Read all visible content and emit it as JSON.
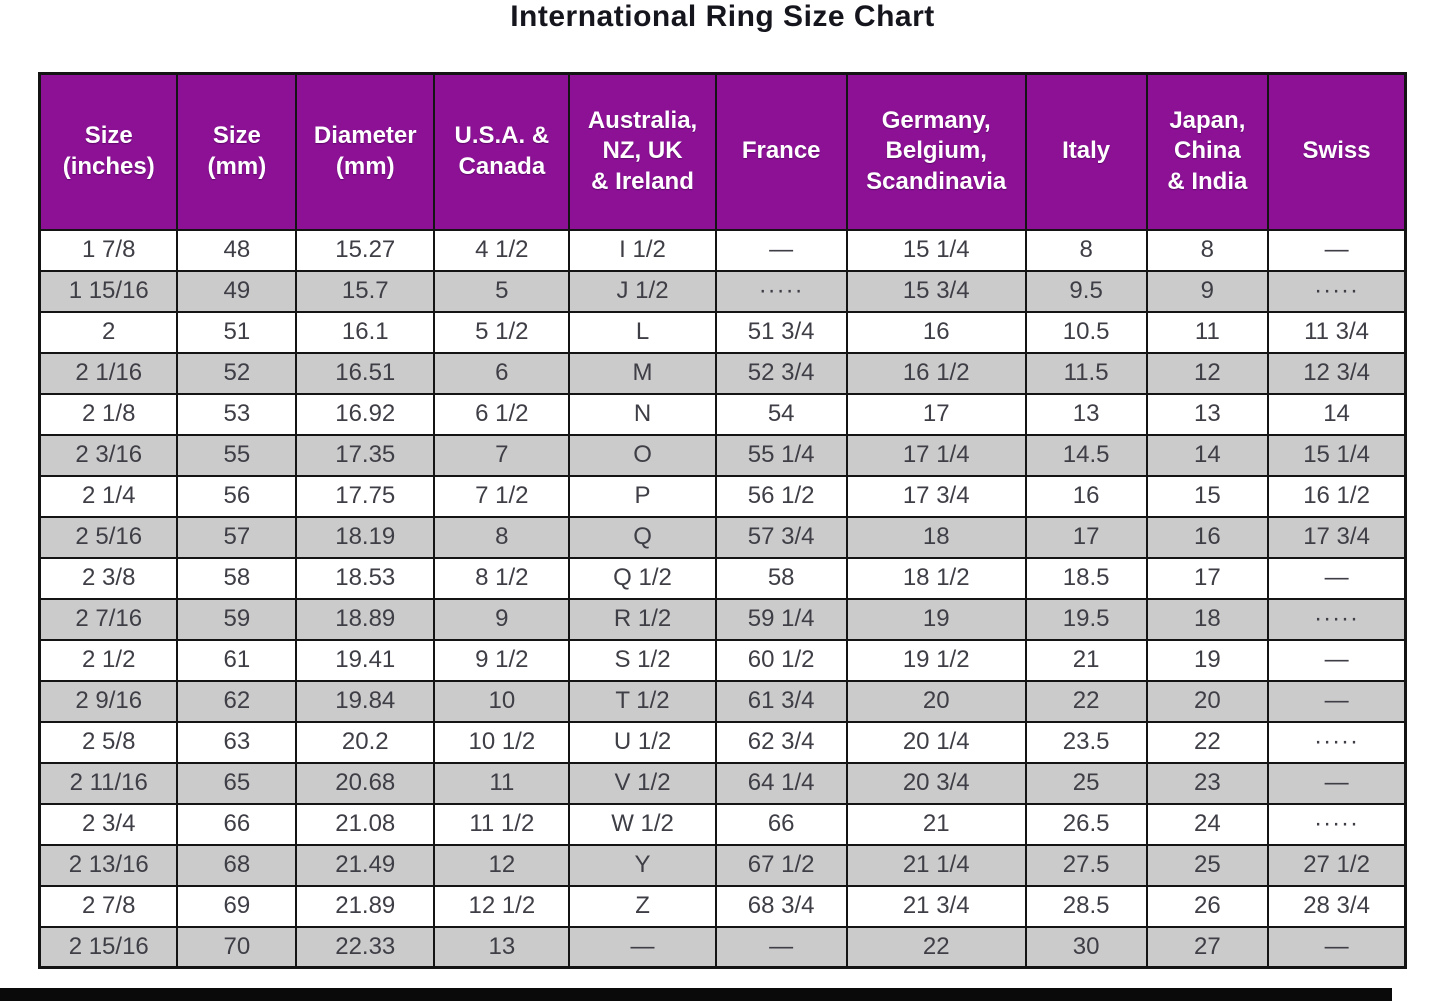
{
  "title": "International Ring Size Chart",
  "colors": {
    "header_bg": "#8c1195",
    "header_text": "#ffffff",
    "row_bg": "#ffffff",
    "row_alt_bg": "#cbcbcb",
    "border": "#141414",
    "body_text": "#3e3e46",
    "title_text": "#15151e"
  },
  "chart_data": {
    "type": "table",
    "title": "International Ring Size Chart",
    "columns": [
      "Size\n(inches)",
      "Size\n(mm)",
      "Diameter\n(mm)",
      "U.S.A. &\nCanada",
      "Australia,\nNZ, UK\n& Ireland",
      "France",
      "Germany,\nBelgium,\nScandinavia",
      "Italy",
      "Japan,\nChina\n& India",
      "Swiss"
    ],
    "rows": [
      [
        "1 7/8",
        "48",
        "15.27",
        "4 1/2",
        "I 1/2",
        "—",
        "15 1/4",
        "8",
        "8",
        "—"
      ],
      [
        "1 15/16",
        "49",
        "15.7",
        "5",
        "J 1/2",
        "·····",
        "15 3/4",
        "9.5",
        "9",
        "·····"
      ],
      [
        "2",
        "51",
        "16.1",
        "5 1/2",
        "L",
        "51 3/4",
        "16",
        "10.5",
        "11",
        "11 3/4"
      ],
      [
        "2 1/16",
        "52",
        "16.51",
        "6",
        "M",
        "52 3/4",
        "16 1/2",
        "11.5",
        "12",
        "12 3/4"
      ],
      [
        "2 1/8",
        "53",
        "16.92",
        "6 1/2",
        "N",
        "54",
        "17",
        "13",
        "13",
        "14"
      ],
      [
        "2 3/16",
        "55",
        "17.35",
        "7",
        "O",
        "55 1/4",
        "17 1/4",
        "14.5",
        "14",
        "15 1/4"
      ],
      [
        "2 1/4",
        "56",
        "17.75",
        "7 1/2",
        "P",
        "56 1/2",
        "17 3/4",
        "16",
        "15",
        "16 1/2"
      ],
      [
        "2 5/16",
        "57",
        "18.19",
        "8",
        "Q",
        "57 3/4",
        "18",
        "17",
        "16",
        "17 3/4"
      ],
      [
        "2 3/8",
        "58",
        "18.53",
        "8 1/2",
        "Q 1/2",
        "58",
        "18 1/2",
        "18.5",
        "17",
        "—"
      ],
      [
        "2 7/16",
        "59",
        "18.89",
        "9",
        "R 1/2",
        "59 1/4",
        "19",
        "19.5",
        "18",
        "·····"
      ],
      [
        "2 1/2",
        "61",
        "19.41",
        "9 1/2",
        "S 1/2",
        "60 1/2",
        "19 1/2",
        "21",
        "19",
        "—"
      ],
      [
        "2 9/16",
        "62",
        "19.84",
        "10",
        "T 1/2",
        "61 3/4",
        "20",
        "22",
        "20",
        "—"
      ],
      [
        "2 5/8",
        "63",
        "20.2",
        "10 1/2",
        "U 1/2",
        "62 3/4",
        "20 1/4",
        "23.5",
        "22",
        "·····"
      ],
      [
        "2 11/16",
        "65",
        "20.68",
        "11",
        "V 1/2",
        "64 1/4",
        "20 3/4",
        "25",
        "23",
        "—"
      ],
      [
        "2 3/4",
        "66",
        "21.08",
        "11 1/2",
        "W 1/2",
        "66",
        "21",
        "26.5",
        "24",
        "·····"
      ],
      [
        "2 13/16",
        "68",
        "21.49",
        "12",
        "Y",
        "67 1/2",
        "21 1/4",
        "27.5",
        "25",
        "27 1/2"
      ],
      [
        "2 7/8",
        "69",
        "21.89",
        "12 1/2",
        "Z",
        "68 3/4",
        "21 3/4",
        "28.5",
        "26",
        "28 3/4"
      ],
      [
        "2 15/16",
        "70",
        "22.33",
        "13",
        "—",
        "—",
        "22",
        "30",
        "27",
        "—"
      ]
    ]
  }
}
